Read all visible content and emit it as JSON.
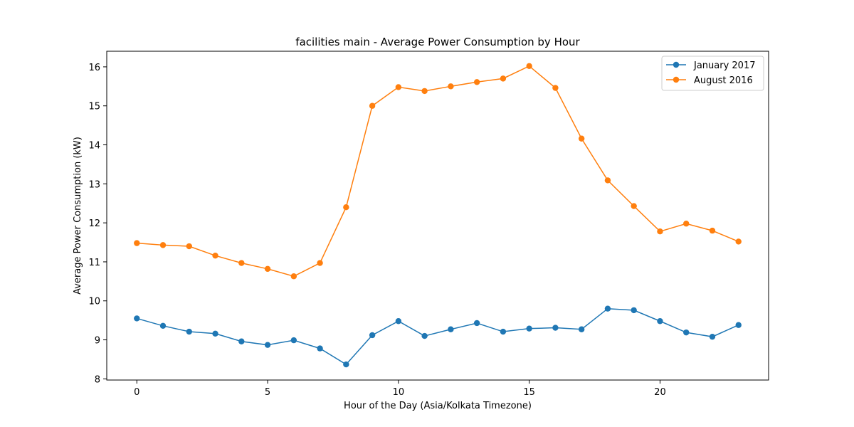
{
  "chart_data": {
    "type": "line",
    "title": "facilities main - Average Power Consumption by Hour",
    "xlabel": "Hour of the Day (Asia/Kolkata Timezone)",
    "ylabel": "Average Power Consumption (kW)",
    "x": [
      0,
      1,
      2,
      3,
      4,
      5,
      6,
      7,
      8,
      9,
      10,
      11,
      12,
      13,
      14,
      15,
      16,
      17,
      18,
      19,
      20,
      21,
      22,
      23
    ],
    "xlim": [
      -1.15,
      24.15
    ],
    "ylim": [
      7.97,
      16.4
    ],
    "xticks": [
      0,
      5,
      10,
      15,
      20
    ],
    "yticks": [
      8,
      9,
      10,
      11,
      12,
      13,
      14,
      15,
      16
    ],
    "grid": false,
    "legend_position": "top-right",
    "series": [
      {
        "name": "January 2017",
        "color": "#1f77b4",
        "values": [
          9.55,
          9.36,
          9.21,
          9.16,
          8.96,
          8.87,
          8.99,
          8.78,
          8.37,
          9.12,
          9.48,
          9.1,
          9.27,
          9.43,
          9.21,
          9.29,
          9.31,
          9.27,
          9.8,
          9.76,
          9.48,
          9.19,
          9.08,
          9.38
        ]
      },
      {
        "name": "August 2016",
        "color": "#ff7f0e",
        "values": [
          11.48,
          11.43,
          11.4,
          11.16,
          10.97,
          10.82,
          10.63,
          10.97,
          12.4,
          15.0,
          15.48,
          15.38,
          15.5,
          15.61,
          15.7,
          16.02,
          15.46,
          14.16,
          13.09,
          12.43,
          11.78,
          11.98,
          11.8,
          11.52
        ]
      }
    ]
  }
}
